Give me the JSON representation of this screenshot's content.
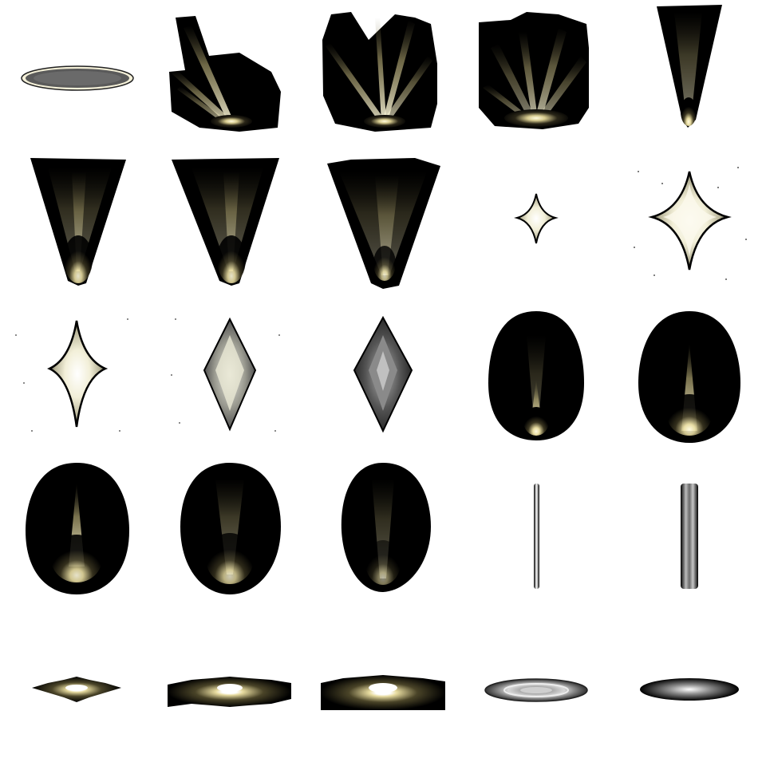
{
  "sheet": {
    "background": "#ffffff",
    "columns": 5,
    "rows": 5,
    "colors": {
      "dark": "#000000",
      "glow": "#fffbe0",
      "warm": "#e8dca0",
      "olive": "#6e6640",
      "grey": "#8a8a8a",
      "light_grey": "#d0d0d0"
    }
  },
  "sprites": [
    {
      "name": "ground-ellipse-plain-sprite",
      "kind": "flat-ellipse-grey"
    },
    {
      "name": "burst-rays-tilted-sprite",
      "kind": "rays-burst"
    },
    {
      "name": "burst-rays-wide-sprite",
      "kind": "rays-burst"
    },
    {
      "name": "burst-rays-dome-sprite",
      "kind": "rays-burst"
    },
    {
      "name": "narrow-cone-beam-sprite",
      "kind": "cone"
    },
    {
      "name": "wide-cone-beam-1-sprite",
      "kind": "cone"
    },
    {
      "name": "wide-cone-beam-2-sprite",
      "kind": "cone"
    },
    {
      "name": "wide-cone-beam-3-sprite",
      "kind": "cone"
    },
    {
      "name": "small-star-sparkle-sprite",
      "kind": "star"
    },
    {
      "name": "large-star-sparkle-sprite",
      "kind": "star"
    },
    {
      "name": "diamond-sparkle-1-sprite",
      "kind": "diamond"
    },
    {
      "name": "diamond-sparkle-2-sprite",
      "kind": "diamond"
    },
    {
      "name": "diamond-sparkle-3-sprite",
      "kind": "diamond"
    },
    {
      "name": "egg-glow-1-sprite",
      "kind": "egg"
    },
    {
      "name": "egg-glow-2-sprite",
      "kind": "egg"
    },
    {
      "name": "egg-glow-3-sprite",
      "kind": "egg"
    },
    {
      "name": "egg-glow-4-sprite",
      "kind": "egg"
    },
    {
      "name": "egg-glow-5-sprite",
      "kind": "egg"
    },
    {
      "name": "thin-line-beam-sprite",
      "kind": "line"
    },
    {
      "name": "thick-line-beam-sprite",
      "kind": "line"
    },
    {
      "name": "ground-burst-small-sprite",
      "kind": "ground-burst"
    },
    {
      "name": "ground-burst-medium-sprite",
      "kind": "ground-burst"
    },
    {
      "name": "ground-burst-large-sprite",
      "kind": "ground-burst"
    },
    {
      "name": "ground-ring-ellipse-sprite",
      "kind": "flat-ellipse-ring"
    },
    {
      "name": "ground-glow-ellipse-sprite",
      "kind": "flat-ellipse-glow"
    }
  ]
}
